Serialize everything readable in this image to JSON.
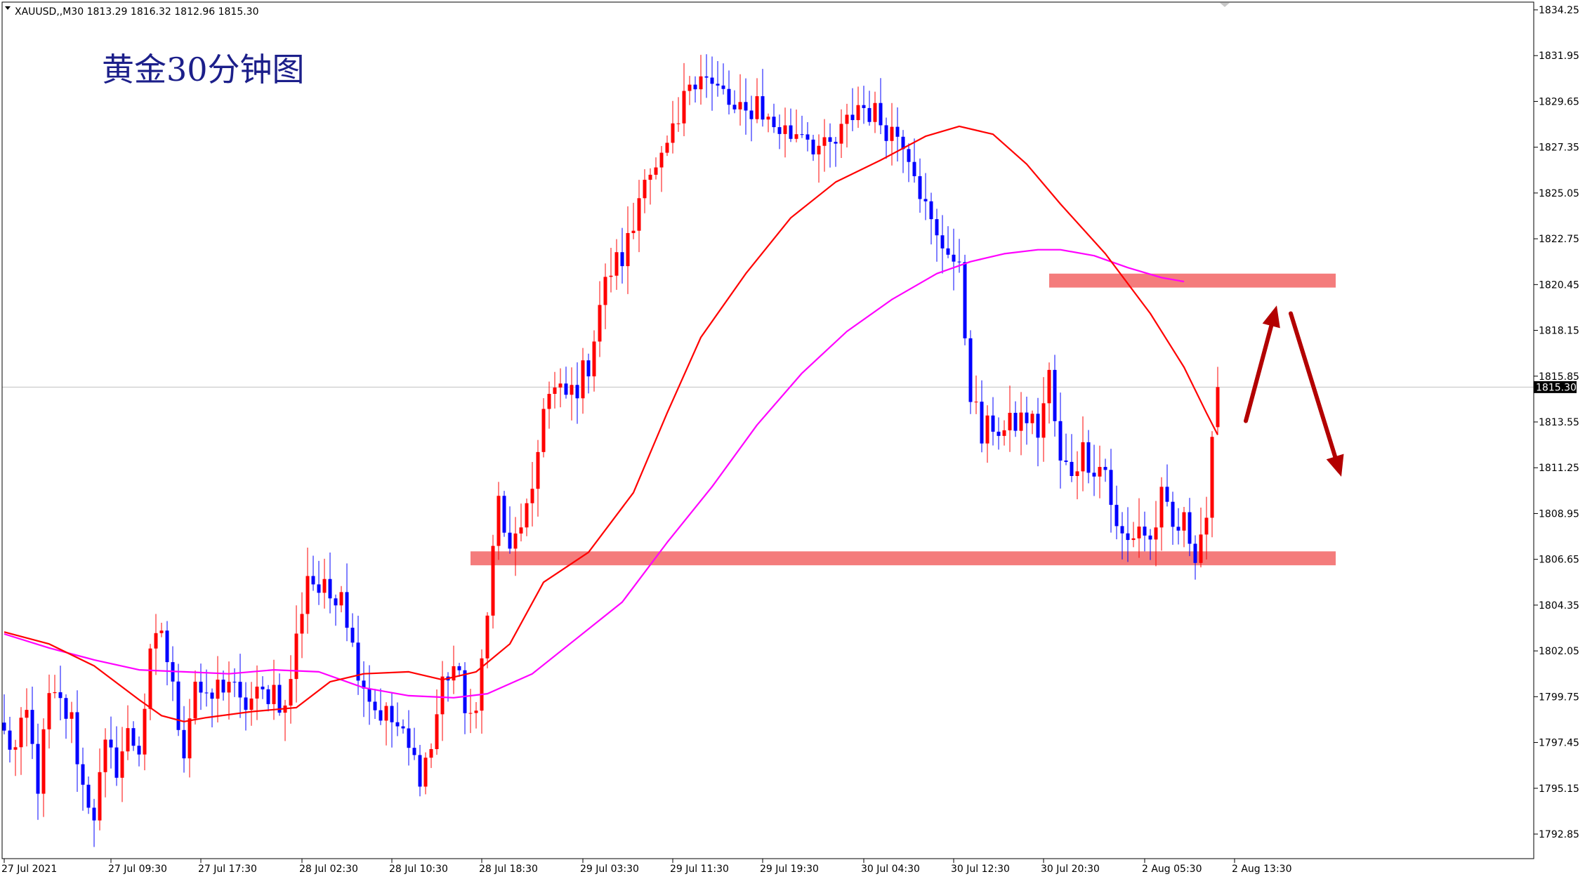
{
  "symbol_info": "XAUUSD,,M30  1813.29 1816.32 1812.96 1815.30",
  "chart_data": {
    "type": "candlestick",
    "title": "黄金30分钟图",
    "symbol": "XAUUSD",
    "timeframe": "M30",
    "ohlc_header": {
      "open": 1813.29,
      "high": 1816.32,
      "low": 1812.96,
      "close": 1815.3
    },
    "current_price": 1815.3,
    "current_price_label": "1815.30",
    "ylim": [
      1791.5,
      1834.9
    ],
    "y_ticks": [
      "1834.25",
      "1831.95",
      "1829.65",
      "1827.35",
      "1825.05",
      "1822.75",
      "1820.45",
      "1818.15",
      "1815.85",
      "1813.55",
      "1811.25",
      "1808.95",
      "1806.65",
      "1804.35",
      "1802.05",
      "1799.75",
      "1797.45",
      "1795.15",
      "1792.85"
    ],
    "x_ticks": [
      {
        "label": "27 Jul 2021",
        "bar": 0
      },
      {
        "label": "27 Jul 09:30",
        "bar": 19
      },
      {
        "label": "27 Jul 17:30",
        "bar": 35
      },
      {
        "label": "28 Jul 02:30",
        "bar": 53
      },
      {
        "label": "28 Jul 10:30",
        "bar": 69
      },
      {
        "label": "28 Jul 18:30",
        "bar": 85
      },
      {
        "label": "29 Jul 03:30",
        "bar": 103
      },
      {
        "label": "29 Jul 11:30",
        "bar": 119
      },
      {
        "label": "29 Jul 19:30",
        "bar": 135
      },
      {
        "label": "30 Jul 04:30",
        "bar": 153
      },
      {
        "label": "30 Jul 12:30",
        "bar": 169
      },
      {
        "label": "30 Jul 20:30",
        "bar": 185
      },
      {
        "label": "2 Aug 05:30",
        "bar": 203
      },
      {
        "label": "2 Aug 13:30",
        "bar": 219
      }
    ],
    "grid": false,
    "colors": {
      "bull": "#ff0000",
      "bear": "#0000ff",
      "ma_fast": "#ff0000",
      "ma_slow": "#ff00ff",
      "zone": "#f47c7c",
      "arrow": "#b30000",
      "current_line": "#c0c0c0",
      "price_tag_bg": "#000000"
    },
    "candle_anchors": [
      [
        0,
        1797.8
      ],
      [
        2,
        1797.0
      ],
      [
        4,
        1798.8
      ],
      [
        6,
        1795.4
      ],
      [
        8,
        1799.6
      ],
      [
        10,
        1799.3
      ],
      [
        12,
        1798.5
      ],
      [
        14,
        1795.2
      ],
      [
        16,
        1794.0
      ],
      [
        18,
        1797.0
      ],
      [
        20,
        1796.3
      ],
      [
        22,
        1797.8
      ],
      [
        24,
        1797.2
      ],
      [
        26,
        1801.5
      ],
      [
        28,
        1803.2
      ],
      [
        30,
        1800.0
      ],
      [
        32,
        1797.2
      ],
      [
        34,
        1800.7
      ],
      [
        36,
        1799.2
      ],
      [
        38,
        1800.2
      ],
      [
        40,
        1800.6
      ],
      [
        42,
        1799.2
      ],
      [
        44,
        1799.6
      ],
      [
        46,
        1799.8
      ],
      [
        48,
        1800.2
      ],
      [
        50,
        1799.0
      ],
      [
        52,
        1802.6
      ],
      [
        54,
        1806.0
      ],
      [
        56,
        1805.1
      ],
      [
        58,
        1804.8
      ],
      [
        60,
        1805.4
      ],
      [
        62,
        1802.2
      ],
      [
        64,
        1800.5
      ],
      [
        66,
        1799.2
      ],
      [
        68,
        1798.8
      ],
      [
        70,
        1798.2
      ],
      [
        72,
        1797.0
      ],
      [
        74,
        1796.0
      ],
      [
        76,
        1797.2
      ],
      [
        78,
        1800.5
      ],
      [
        80,
        1801.3
      ],
      [
        82,
        1799.4
      ],
      [
        84,
        1798.4
      ],
      [
        86,
        1804.6
      ],
      [
        88,
        1809.6
      ],
      [
        90,
        1806.7
      ],
      [
        92,
        1808.6
      ],
      [
        94,
        1809.4
      ],
      [
        96,
        1814.7
      ],
      [
        98,
        1815.0
      ],
      [
        100,
        1814.8
      ],
      [
        102,
        1815.4
      ],
      [
        104,
        1816.5
      ],
      [
        106,
        1819.5
      ],
      [
        108,
        1821.2
      ],
      [
        110,
        1821.8
      ],
      [
        112,
        1823.3
      ],
      [
        114,
        1826.5
      ],
      [
        116,
        1826.0
      ],
      [
        118,
        1827.1
      ],
      [
        120,
        1828.4
      ],
      [
        122,
        1830.8
      ],
      [
        124,
        1831.3
      ],
      [
        126,
        1830.3
      ],
      [
        128,
        1830.0
      ],
      [
        130,
        1829.0
      ],
      [
        132,
        1828.9
      ],
      [
        134,
        1829.8
      ],
      [
        136,
        1828.6
      ],
      [
        138,
        1828.3
      ],
      [
        140,
        1828.0
      ],
      [
        142,
        1828.4
      ],
      [
        144,
        1827.6
      ],
      [
        146,
        1827.1
      ],
      [
        148,
        1827.5
      ],
      [
        150,
        1828.5
      ],
      [
        152,
        1829.5
      ],
      [
        154,
        1829.2
      ],
      [
        156,
        1828.7
      ],
      [
        158,
        1828.2
      ],
      [
        160,
        1827.9
      ],
      [
        162,
        1826.5
      ],
      [
        164,
        1824.2
      ],
      [
        166,
        1822.6
      ],
      [
        168,
        1822.4
      ],
      [
        170,
        1820.9
      ],
      [
        172,
        1815.2
      ],
      [
        174,
        1812.7
      ],
      [
        176,
        1813.5
      ],
      [
        178,
        1813.0
      ],
      [
        180,
        1813.5
      ],
      [
        182,
        1813.8
      ],
      [
        184,
        1813.1
      ],
      [
        186,
        1815.8
      ],
      [
        188,
        1811.3
      ],
      [
        190,
        1811.2
      ],
      [
        192,
        1812.1
      ],
      [
        194,
        1811.4
      ],
      [
        196,
        1811.2
      ],
      [
        198,
        1808.0
      ],
      [
        200,
        1807.5
      ],
      [
        202,
        1808.4
      ],
      [
        204,
        1807.5
      ],
      [
        206,
        1809.6
      ],
      [
        208,
        1808.1
      ],
      [
        210,
        1808.4
      ],
      [
        212,
        1807.2
      ],
      [
        214,
        1808.9
      ],
      [
        216,
        1815.3
      ]
    ],
    "zones": [
      {
        "from_bar": 186,
        "to_bar": 237,
        "y_low": 1820.3,
        "y_high": 1821.0
      },
      {
        "from_bar": 83,
        "to_bar": 237,
        "y_low": 1806.35,
        "y_high": 1807.05
      }
    ],
    "ma_fast": [
      [
        0,
        1803.0
      ],
      [
        8,
        1802.4
      ],
      [
        16,
        1801.3
      ],
      [
        24,
        1799.6
      ],
      [
        28,
        1798.8
      ],
      [
        32,
        1798.5
      ],
      [
        36,
        1798.7
      ],
      [
        44,
        1799.0
      ],
      [
        52,
        1799.2
      ],
      [
        58,
        1800.5
      ],
      [
        64,
        1800.9
      ],
      [
        72,
        1801.0
      ],
      [
        78,
        1800.6
      ],
      [
        84,
        1801.0
      ],
      [
        90,
        1802.4
      ],
      [
        96,
        1805.5
      ],
      [
        104,
        1807.0
      ],
      [
        112,
        1810.0
      ],
      [
        118,
        1814.0
      ],
      [
        124,
        1817.8
      ],
      [
        132,
        1821.0
      ],
      [
        140,
        1823.8
      ],
      [
        148,
        1825.6
      ],
      [
        156,
        1826.7
      ],
      [
        164,
        1827.9
      ],
      [
        170,
        1828.4
      ],
      [
        176,
        1828.0
      ],
      [
        182,
        1826.5
      ],
      [
        188,
        1824.5
      ],
      [
        196,
        1822.0
      ],
      [
        204,
        1819.0
      ],
      [
        210,
        1816.3
      ],
      [
        214,
        1814.0
      ],
      [
        216,
        1812.9
      ]
    ],
    "ma_slow": [
      [
        0,
        1802.9
      ],
      [
        8,
        1802.2
      ],
      [
        16,
        1801.6
      ],
      [
        24,
        1801.1
      ],
      [
        32,
        1801.0
      ],
      [
        40,
        1800.9
      ],
      [
        48,
        1801.1
      ],
      [
        56,
        1801.0
      ],
      [
        64,
        1800.2
      ],
      [
        72,
        1799.8
      ],
      [
        80,
        1799.7
      ],
      [
        86,
        1799.9
      ],
      [
        94,
        1800.9
      ],
      [
        102,
        1802.7
      ],
      [
        110,
        1804.5
      ],
      [
        118,
        1807.5
      ],
      [
        126,
        1810.3
      ],
      [
        134,
        1813.4
      ],
      [
        142,
        1816.0
      ],
      [
        150,
        1818.1
      ],
      [
        158,
        1819.7
      ],
      [
        166,
        1821.0
      ],
      [
        172,
        1821.6
      ],
      [
        178,
        1822.0
      ],
      [
        184,
        1822.2
      ],
      [
        188,
        1822.2
      ],
      [
        194,
        1821.9
      ],
      [
        200,
        1821.3
      ],
      [
        206,
        1820.8
      ],
      [
        210,
        1820.6
      ]
    ],
    "arrows": [
      {
        "from": [
          221,
          1813.6
        ],
        "to": [
          226.5,
          1819.4
        ]
      },
      {
        "from": [
          229,
          1819.0
        ],
        "to": [
          238,
          1810.8
        ]
      }
    ]
  }
}
